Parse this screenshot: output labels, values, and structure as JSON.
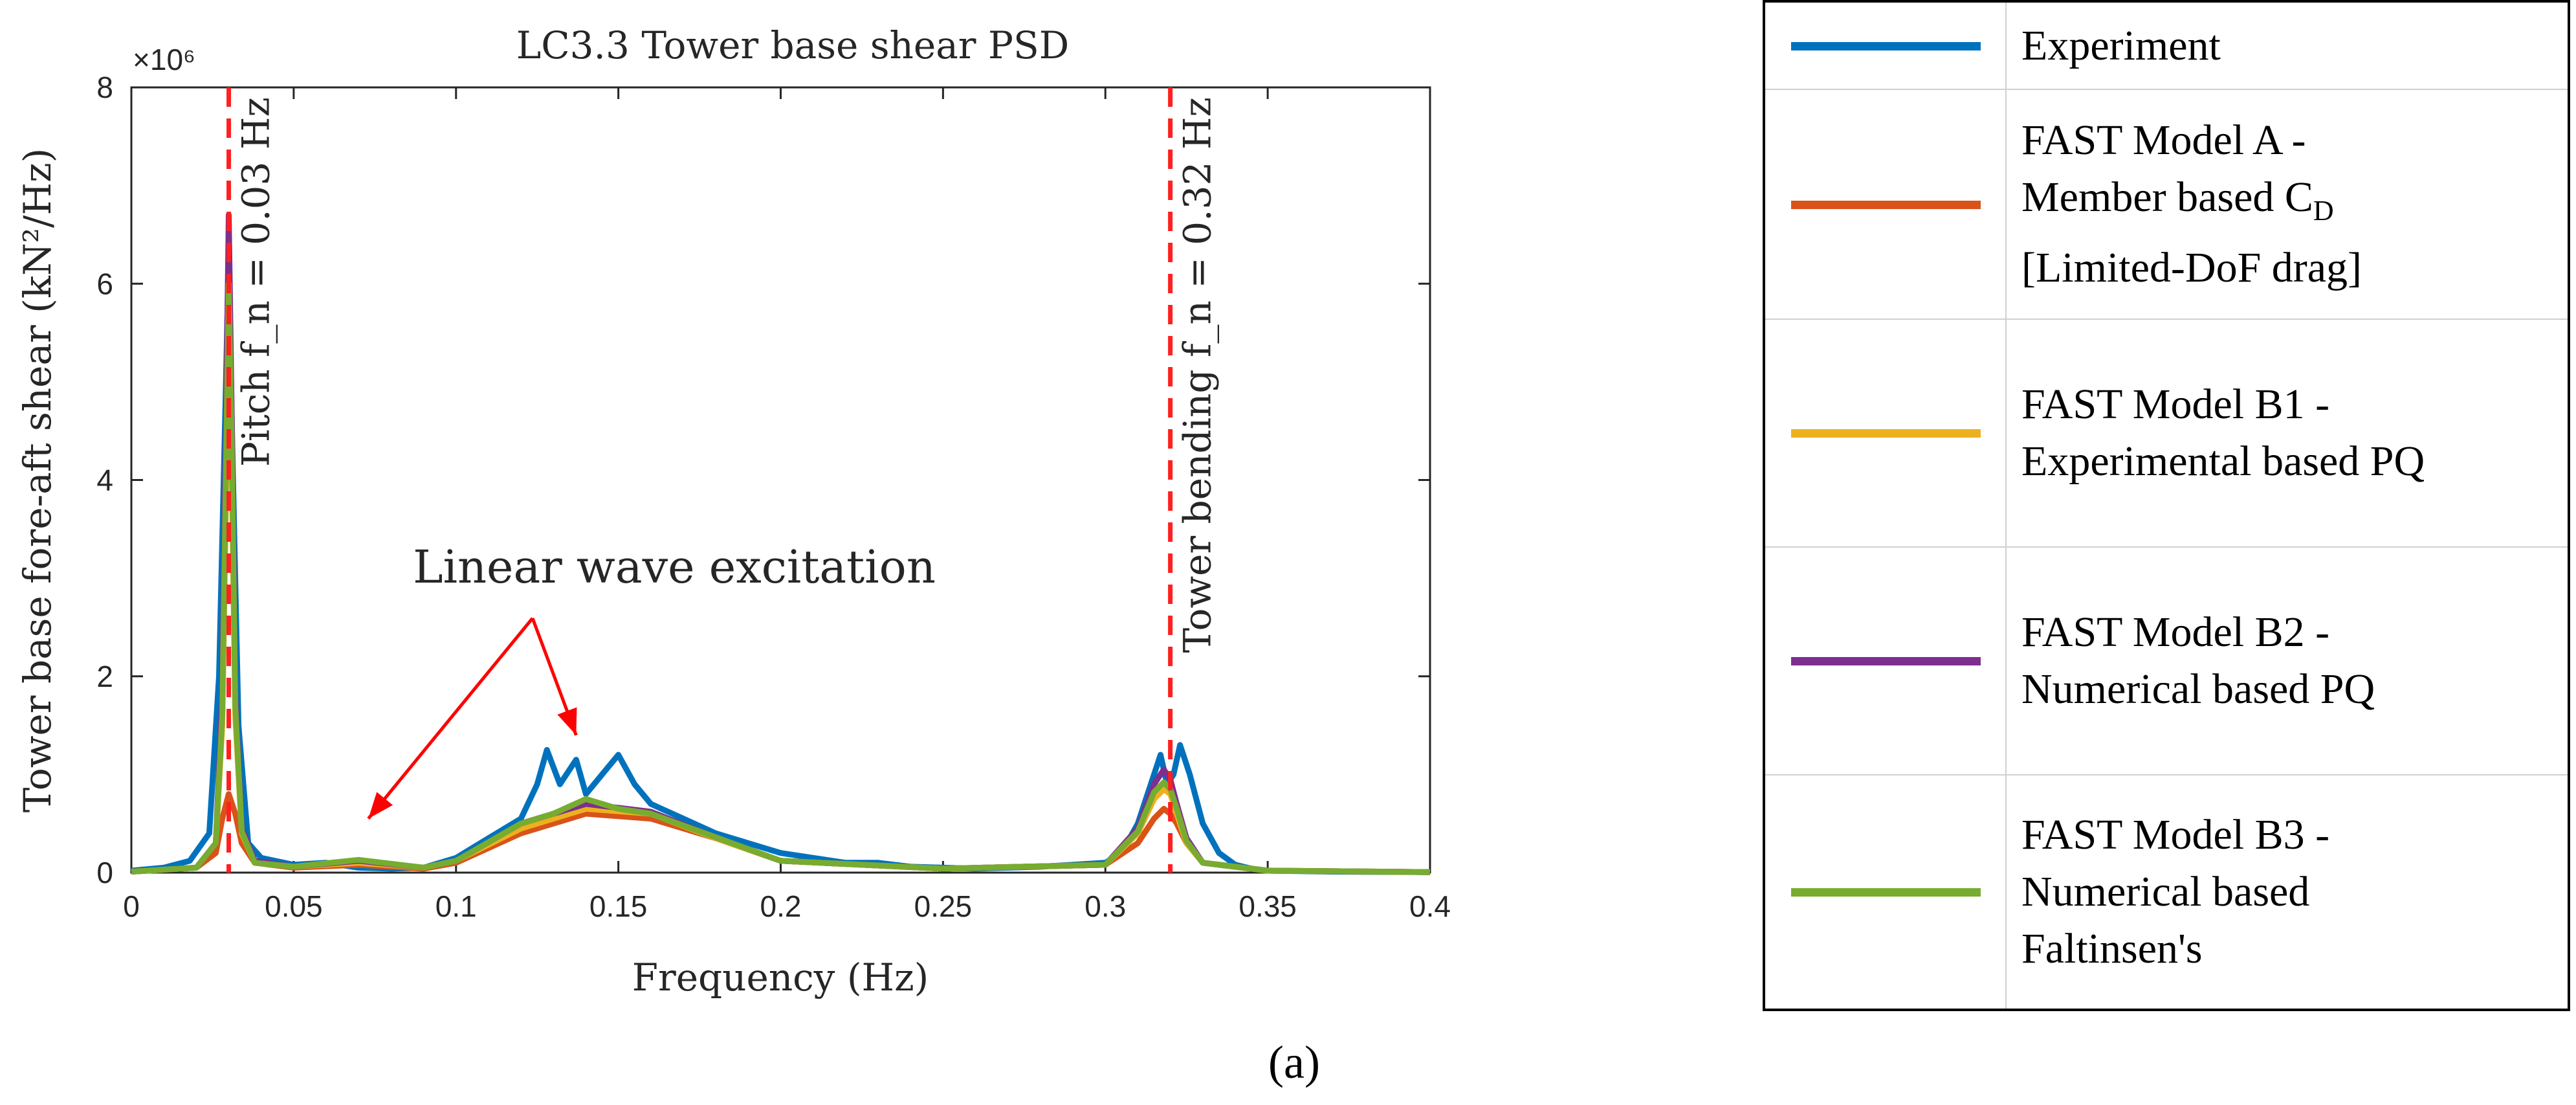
{
  "chart_data": {
    "type": "line",
    "title": "LC3.3 Tower base shear PSD",
    "xlabel": "Frequency (Hz)",
    "ylabel": "Tower base fore-aft shear (kN²/Hz)",
    "y_multiplier": "×10⁶",
    "xlim": [
      0,
      0.4
    ],
    "ylim": [
      0,
      8
    ],
    "xticks": [
      0,
      0.05,
      0.1,
      0.15,
      0.2,
      0.25,
      0.3,
      0.35,
      0.4
    ],
    "xtick_labels": [
      "0",
      "0.05",
      "0.1",
      "0.15",
      "0.2",
      "0.25",
      "0.3",
      "0.35",
      "0.4"
    ],
    "yticks": [
      0,
      2,
      4,
      6,
      8
    ],
    "ytick_labels": [
      "0",
      "2",
      "4",
      "6",
      "8"
    ],
    "grid": false,
    "series": [
      {
        "name": "Experiment",
        "color": "#0072BD",
        "x": [
          0,
          0.01,
          0.018,
          0.024,
          0.027,
          0.029,
          0.03,
          0.031,
          0.033,
          0.036,
          0.04,
          0.05,
          0.06,
          0.07,
          0.08,
          0.09,
          0.1,
          0.11,
          0.12,
          0.125,
          0.128,
          0.132,
          0.137,
          0.14,
          0.145,
          0.15,
          0.155,
          0.16,
          0.17,
          0.18,
          0.19,
          0.2,
          0.21,
          0.22,
          0.23,
          0.24,
          0.25,
          0.26,
          0.27,
          0.28,
          0.29,
          0.3,
          0.305,
          0.31,
          0.315,
          0.317,
          0.319,
          0.321,
          0.323,
          0.326,
          0.33,
          0.335,
          0.34,
          0.345,
          0.35,
          0.37,
          0.4
        ],
        "y": [
          0.02,
          0.05,
          0.12,
          0.4,
          2.0,
          4.8,
          6.3,
          4.5,
          1.5,
          0.3,
          0.15,
          0.08,
          0.1,
          0.05,
          0.04,
          0.05,
          0.15,
          0.35,
          0.55,
          0.9,
          1.25,
          0.9,
          1.15,
          0.8,
          1.0,
          1.2,
          0.9,
          0.7,
          0.55,
          0.4,
          0.3,
          0.2,
          0.15,
          0.1,
          0.1,
          0.06,
          0.05,
          0.04,
          0.05,
          0.06,
          0.08,
          0.1,
          0.2,
          0.5,
          1.0,
          1.2,
          0.9,
          1.0,
          1.3,
          1.0,
          0.5,
          0.2,
          0.08,
          0.04,
          0.02,
          0.01,
          0.005
        ]
      },
      {
        "name": "FAST Model A - Member based C_D [Limited-DoF drag]",
        "color": "#D95319",
        "x": [
          0,
          0.02,
          0.026,
          0.028,
          0.03,
          0.032,
          0.034,
          0.038,
          0.05,
          0.07,
          0.09,
          0.1,
          0.12,
          0.14,
          0.16,
          0.18,
          0.2,
          0.25,
          0.3,
          0.31,
          0.315,
          0.318,
          0.32,
          0.322,
          0.325,
          0.33,
          0.35,
          0.4
        ],
        "y": [
          0.01,
          0.05,
          0.2,
          0.55,
          0.8,
          0.6,
          0.3,
          0.1,
          0.05,
          0.08,
          0.04,
          0.1,
          0.4,
          0.6,
          0.55,
          0.35,
          0.12,
          0.04,
          0.08,
          0.3,
          0.55,
          0.65,
          0.6,
          0.5,
          0.3,
          0.1,
          0.02,
          0.005
        ]
      },
      {
        "name": "FAST Model B1 - Experimental based PQ",
        "color": "#EDB120",
        "x": [
          0,
          0.02,
          0.026,
          0.028,
          0.029,
          0.03,
          0.031,
          0.032,
          0.034,
          0.038,
          0.05,
          0.07,
          0.09,
          0.1,
          0.12,
          0.14,
          0.16,
          0.18,
          0.2,
          0.25,
          0.3,
          0.31,
          0.315,
          0.318,
          0.32,
          0.322,
          0.325,
          0.33,
          0.35,
          0.4
        ],
        "y": [
          0.01,
          0.05,
          0.3,
          1.5,
          3.5,
          5.8,
          4.0,
          1.6,
          0.4,
          0.1,
          0.06,
          0.1,
          0.05,
          0.12,
          0.45,
          0.65,
          0.6,
          0.35,
          0.12,
          0.04,
          0.08,
          0.4,
          0.75,
          0.85,
          0.8,
          0.6,
          0.3,
          0.1,
          0.02,
          0.005
        ]
      },
      {
        "name": "FAST Model B2 - Numerical based PQ",
        "color": "#7E2F8E",
        "x": [
          0,
          0.02,
          0.026,
          0.028,
          0.029,
          0.03,
          0.031,
          0.032,
          0.034,
          0.038,
          0.05,
          0.07,
          0.09,
          0.1,
          0.12,
          0.14,
          0.16,
          0.18,
          0.2,
          0.25,
          0.3,
          0.31,
          0.315,
          0.318,
          0.32,
          0.322,
          0.325,
          0.33,
          0.35,
          0.4
        ],
        "y": [
          0.01,
          0.05,
          0.3,
          1.8,
          4.2,
          6.7,
          4.5,
          1.8,
          0.45,
          0.12,
          0.06,
          0.12,
          0.05,
          0.12,
          0.5,
          0.7,
          0.62,
          0.36,
          0.12,
          0.04,
          0.08,
          0.45,
          0.9,
          1.05,
          0.95,
          0.7,
          0.35,
          0.1,
          0.02,
          0.005
        ]
      },
      {
        "name": "FAST Model B3 - Numerical based Faltinsen's",
        "color": "#77AC30",
        "x": [
          0,
          0.02,
          0.026,
          0.028,
          0.029,
          0.03,
          0.031,
          0.032,
          0.034,
          0.038,
          0.05,
          0.07,
          0.09,
          0.1,
          0.12,
          0.13,
          0.14,
          0.15,
          0.16,
          0.18,
          0.2,
          0.25,
          0.3,
          0.31,
          0.315,
          0.318,
          0.32,
          0.322,
          0.325,
          0.33,
          0.35,
          0.4
        ],
        "y": [
          0.01,
          0.05,
          0.3,
          1.6,
          3.8,
          6.0,
          4.2,
          1.7,
          0.42,
          0.1,
          0.06,
          0.13,
          0.05,
          0.12,
          0.5,
          0.6,
          0.75,
          0.65,
          0.6,
          0.36,
          0.12,
          0.04,
          0.08,
          0.42,
          0.82,
          0.92,
          0.85,
          0.65,
          0.32,
          0.1,
          0.02,
          0.005
        ]
      }
    ],
    "vlines": [
      {
        "x": 0.03,
        "label": "Pitch f_n = 0.03 Hz",
        "color": "#FF2020"
      },
      {
        "x": 0.32,
        "label": "Tower bending f_n = 0.32 Hz",
        "color": "#FF2020"
      }
    ],
    "annotation": {
      "text": "Linear wave excitation",
      "color": "#FF0000",
      "arrows_to": [
        [
          0.073,
          0.55
        ],
        [
          0.137,
          1.4
        ]
      ]
    }
  },
  "legend": [
    {
      "color": "#0072BD",
      "lines": [
        "Experiment"
      ]
    },
    {
      "color": "#D95319",
      "lines": [
        "FAST Model A -",
        "Member based C",
        "[Limited-DoF drag]"
      ],
      "subscript": "D"
    },
    {
      "color": "#EDB120",
      "lines": [
        "FAST Model B1 -",
        "Experimental based PQ"
      ]
    },
    {
      "color": "#7E2F8E",
      "lines": [
        "FAST Model B2 -",
        "Numerical based PQ"
      ]
    },
    {
      "color": "#77AC30",
      "lines": [
        "FAST Model B3 -",
        "Numerical based",
        "Faltinsen's"
      ]
    }
  ],
  "caption": "(a)"
}
